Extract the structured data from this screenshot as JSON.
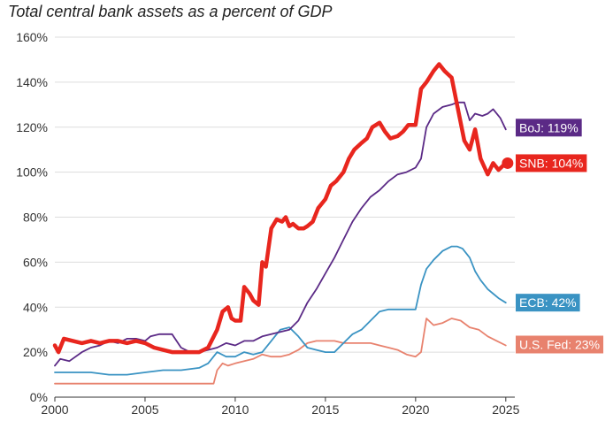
{
  "chart_data": {
    "type": "line",
    "title": "Total central bank assets as a percent of GDP",
    "xlabel": "",
    "ylabel": "",
    "xlim": [
      2000,
      2025.5
    ],
    "ylim": [
      0,
      160
    ],
    "x_ticks": [
      "2000",
      "2005",
      "2010",
      "2015",
      "2020",
      "2025"
    ],
    "x_tick_values": [
      2000,
      2005,
      2010,
      2015,
      2020,
      2025
    ],
    "y_ticks": [
      "0%",
      "20%",
      "40%",
      "60%",
      "80%",
      "100%",
      "120%",
      "140%",
      "160%"
    ],
    "y_tick_values": [
      0,
      20,
      40,
      60,
      80,
      100,
      120,
      140,
      160
    ],
    "grid": "horizontal",
    "series": [
      {
        "name": "BoJ",
        "end_label": "BoJ: 119%",
        "color": "#5b2a86",
        "x": [
          2000,
          2000.3,
          2000.8,
          2001.5,
          2002.0,
          2002.5,
          2003.0,
          2003.5,
          2004.0,
          2004.5,
          2005.0,
          2005.3,
          2005.8,
          2006.5,
          2007.0,
          2007.5,
          2008.0,
          2008.5,
          2009.0,
          2009.5,
          2010.0,
          2010.5,
          2011.0,
          2011.5,
          2012.0,
          2012.5,
          2013.0,
          2013.5,
          2014.0,
          2014.5,
          2015.0,
          2015.5,
          2016.0,
          2016.5,
          2017.0,
          2017.5,
          2018.0,
          2018.5,
          2019.0,
          2019.5,
          2020.0,
          2020.3,
          2020.6,
          2021.0,
          2021.5,
          2022.0,
          2022.3,
          2022.7,
          2023.0,
          2023.3,
          2023.7,
          2024.0,
          2024.3,
          2024.7,
          2025.0
        ],
        "y": [
          14,
          17,
          16,
          20,
          22,
          23,
          25,
          24,
          26,
          26,
          25,
          27,
          28,
          28,
          22,
          20,
          20,
          21,
          22,
          24,
          23,
          25,
          25,
          27,
          28,
          29,
          30,
          34,
          42,
          48,
          55,
          62,
          70,
          78,
          84,
          89,
          92,
          96,
          99,
          100,
          102,
          106,
          120,
          126,
          129,
          130,
          131,
          131,
          123,
          126,
          125,
          126,
          128,
          124,
          119
        ]
      },
      {
        "name": "SNB",
        "end_label": "SNB: 104%",
        "color": "#e8261e",
        "x": [
          2000,
          2000.2,
          2000.5,
          2001.0,
          2001.5,
          2002.0,
          2002.5,
          2003.0,
          2003.5,
          2004.0,
          2004.5,
          2005.0,
          2005.5,
          2006.0,
          2006.5,
          2007.0,
          2007.5,
          2008.0,
          2008.5,
          2009.0,
          2009.3,
          2009.6,
          2009.8,
          2010.0,
          2010.3,
          2010.5,
          2010.8,
          2011.0,
          2011.3,
          2011.5,
          2011.7,
          2012.0,
          2012.3,
          2012.6,
          2012.8,
          2013.0,
          2013.2,
          2013.5,
          2013.8,
          2014.0,
          2014.3,
          2014.6,
          2015.0,
          2015.3,
          2015.6,
          2016.0,
          2016.3,
          2016.6,
          2017.0,
          2017.3,
          2017.6,
          2018.0,
          2018.3,
          2018.6,
          2019.0,
          2019.3,
          2019.6,
          2020.0,
          2020.3,
          2020.6,
          2021.0,
          2021.3,
          2021.6,
          2022.0,
          2022.3,
          2022.7,
          2023.0,
          2023.3,
          2023.6,
          2024.0,
          2024.3,
          2024.6,
          2025.0
        ],
        "y": [
          23,
          20,
          26,
          25,
          24,
          25,
          24,
          25,
          25,
          24,
          25,
          24,
          22,
          21,
          20,
          20,
          20,
          20,
          22,
          30,
          38,
          40,
          35,
          34,
          34,
          49,
          46,
          43,
          41,
          60,
          58,
          75,
          79,
          78,
          80,
          76,
          77,
          75,
          75,
          76,
          78,
          84,
          88,
          94,
          96,
          100,
          106,
          110,
          113,
          115,
          120,
          122,
          118,
          115,
          116,
          118,
          121,
          121,
          137,
          140,
          145,
          148,
          145,
          142,
          130,
          114,
          110,
          119,
          106,
          99,
          104,
          101,
          104
        ]
      },
      {
        "name": "ECB",
        "end_label": "ECB: 42%",
        "color": "#3a93c3",
        "x": [
          2000,
          2001,
          2002,
          2003,
          2004,
          2005,
          2006,
          2007,
          2008,
          2008.5,
          2009,
          2009.5,
          2010,
          2010.5,
          2011,
          2011.5,
          2012,
          2012.5,
          2013,
          2013.5,
          2014,
          2014.5,
          2015,
          2015.5,
          2016,
          2016.5,
          2017,
          2017.5,
          2018,
          2018.5,
          2019,
          2019.5,
          2020,
          2020.3,
          2020.6,
          2021,
          2021.5,
          2022,
          2022.3,
          2022.6,
          2023,
          2023.3,
          2023.6,
          2024,
          2024.3,
          2024.6,
          2025
        ],
        "y": [
          11,
          11,
          11,
          10,
          10,
          11,
          12,
          12,
          13,
          15,
          20,
          18,
          18,
          20,
          19,
          20,
          25,
          30,
          31,
          27,
          22,
          21,
          20,
          20,
          24,
          28,
          30,
          34,
          38,
          39,
          39,
          39,
          39,
          50,
          57,
          61,
          65,
          67,
          67,
          66,
          62,
          56,
          52,
          48,
          46,
          44,
          42
        ]
      },
      {
        "name": "U.S. Fed",
        "end_label": "U.S. Fed: 23%",
        "color": "#e8826e",
        "x": [
          2000,
          2001,
          2002,
          2003,
          2004,
          2005,
          2006,
          2007,
          2008,
          2008.8,
          2009,
          2009.3,
          2009.6,
          2010,
          2010.5,
          2011,
          2011.5,
          2012,
          2012.5,
          2013,
          2013.5,
          2014,
          2014.5,
          2015,
          2015.5,
          2016,
          2016.5,
          2017,
          2017.5,
          2018,
          2018.5,
          2019,
          2019.5,
          2020,
          2020.3,
          2020.6,
          2021,
          2021.5,
          2022,
          2022.5,
          2023,
          2023.5,
          2024,
          2024.5,
          2025
        ],
        "y": [
          6,
          6,
          6,
          6,
          6,
          6,
          6,
          6,
          6,
          6,
          12,
          15,
          14,
          15,
          16,
          17,
          19,
          18,
          18,
          19,
          21,
          24,
          25,
          25,
          25,
          24,
          24,
          24,
          24,
          23,
          22,
          21,
          19,
          18,
          20,
          35,
          32,
          33,
          35,
          34,
          31,
          30,
          27,
          25,
          23
        ]
      }
    ],
    "end_markers": [
      {
        "series": "SNB",
        "x": 2025.1,
        "y": 104
      }
    ]
  }
}
